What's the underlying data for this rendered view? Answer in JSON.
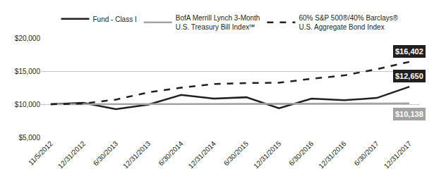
{
  "chart_data": {
    "type": "line",
    "categories": [
      "11/5/2012",
      "12/31/2012",
      "6/30/2013",
      "12/31/2013",
      "6/30/2014",
      "12/31/2014",
      "6/30/2015",
      "12/31/2015",
      "6/30/2016",
      "12/31/2016",
      "6/30/2017",
      "12/31/2017"
    ],
    "series": [
      {
        "name": "Fund - Class I",
        "color": "#231f20",
        "line_style": "solid",
        "values": [
          10000,
          10200,
          9250,
          9950,
          11400,
          10850,
          11050,
          9400,
          10850,
          10600,
          10950,
          12650
        ],
        "value_labels": [
          null,
          null,
          null,
          null,
          null,
          null,
          null,
          null,
          null,
          null,
          null,
          "$12,650"
        ]
      },
      {
        "name": "BofA Merrill Lynch 3-Month\nU.S. Treasury Bill Index℠",
        "color": "#a3a3a3",
        "line_style": "solid",
        "values": [
          10000,
          10005,
          10010,
          10015,
          10020,
          10025,
          10030,
          10035,
          10060,
          10080,
          10100,
          10138
        ],
        "value_labels": [
          null,
          null,
          null,
          null,
          null,
          null,
          null,
          null,
          null,
          null,
          null,
          "$10,138"
        ]
      },
      {
        "name": "60% S&P 500®/40% Barclays®\nU.S. Aggregate Bond Index",
        "color": "#231f20",
        "line_style": "dash",
        "values": [
          10000,
          10100,
          10700,
          11800,
          12500,
          13050,
          13200,
          13250,
          13850,
          14350,
          15300,
          16402
        ],
        "value_labels": [
          null,
          null,
          null,
          null,
          null,
          null,
          null,
          null,
          null,
          null,
          null,
          "$16,402"
        ]
      }
    ],
    "ylim": [
      5000,
      20000
    ],
    "yticks": [
      {
        "value": 5000,
        "label": "$5,000"
      },
      {
        "value": 10000,
        "label": "$10,000"
      },
      {
        "value": 15000,
        "label": "$15,000"
      },
      {
        "value": 20000,
        "label": "$20,000"
      }
    ],
    "grid": true,
    "legend": "top",
    "data_labels": true
  }
}
